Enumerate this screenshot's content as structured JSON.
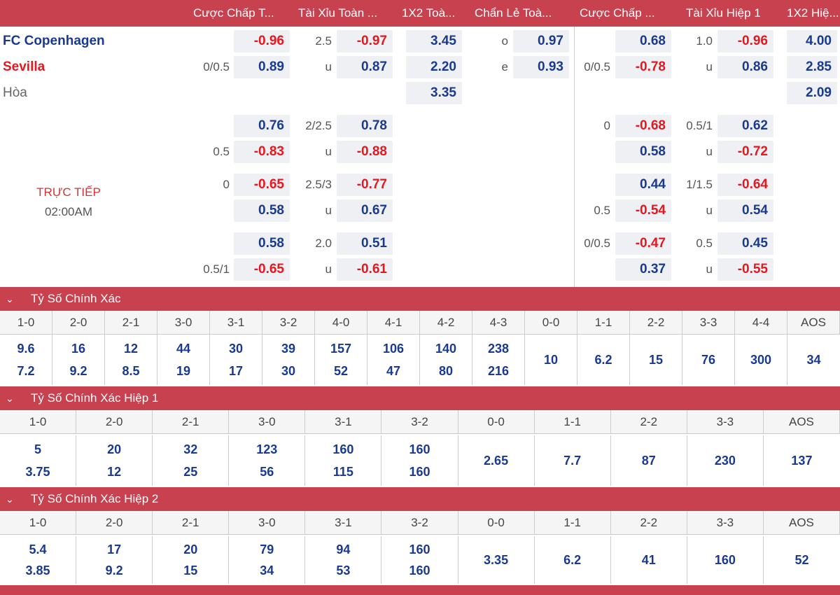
{
  "headers": [
    "Cược Chấp T...",
    "Tài Xỉu Toàn ...",
    "1X2 Toà...",
    "Chẩn Lẻ Toà...",
    "Cược Chấp ...",
    "Tài Xỉu Hiệp 1",
    "1X2 Hiệ..."
  ],
  "teams": {
    "home": "FC Copenhagen",
    "away": "Sevilla",
    "draw": "Hòa"
  },
  "status": {
    "live": "TRỰC TIẾP",
    "time": "02:00AM"
  },
  "rows": {
    "r1": {
      "fh_odd": "-0.96",
      "ou_line": "2.5",
      "ou_odd": "-0.97",
      "x12": "3.45",
      "oe_label": "o",
      "oe_odd": "0.97",
      "h1h_odd": "0.68",
      "h1ou_line": "1.0",
      "h1ou_odd": "-0.96",
      "h1x12": "4.00"
    },
    "r2": {
      "fh_line": "0/0.5",
      "fh_odd": "0.89",
      "ou_label": "u",
      "ou_odd": "0.87",
      "x12": "2.20",
      "oe_label": "e",
      "oe_odd": "0.93",
      "h1h_line": "0/0.5",
      "h1h_odd": "-0.78",
      "h1ou_label": "u",
      "h1ou_odd": "0.86",
      "h1x12": "2.85"
    },
    "r3": {
      "x12": "3.35",
      "h1x12": "2.09"
    },
    "r4": {
      "fh_odd": "0.76",
      "ou_line": "2/2.5",
      "ou_odd": "0.78",
      "h1h_line": "0",
      "h1h_odd": "-0.68",
      "h1ou_line": "0.5/1",
      "h1ou_odd": "0.62"
    },
    "r5": {
      "fh_line": "0.5",
      "fh_odd": "-0.83",
      "ou_label": "u",
      "ou_odd": "-0.88",
      "h1h_odd": "0.58",
      "h1ou_label": "u",
      "h1ou_odd": "-0.72"
    },
    "r6": {
      "fh_line": "0",
      "fh_odd": "-0.65",
      "ou_line": "2.5/3",
      "ou_odd": "-0.77",
      "h1h_odd": "0.44",
      "h1ou_line": "1/1.5",
      "h1ou_odd": "-0.64"
    },
    "r7": {
      "fh_odd": "0.58",
      "ou_label": "u",
      "ou_odd": "0.67",
      "h1h_line": "0.5",
      "h1h_odd": "-0.54",
      "h1ou_label": "u",
      "h1ou_odd": "0.54"
    },
    "r8": {
      "fh_odd": "0.58",
      "ou_line": "2.0",
      "ou_odd": "0.51",
      "h1h_line": "0/0.5",
      "h1h_odd": "-0.47",
      "h1ou_line": "0.5",
      "h1ou_odd": "0.45"
    },
    "r9": {
      "fh_line": "0.5/1",
      "fh_odd": "-0.65",
      "ou_label": "u",
      "ou_odd": "-0.61",
      "h1h_odd": "0.37",
      "h1ou_label": "u",
      "h1ou_odd": "-0.55"
    }
  },
  "correct_score": {
    "title": "Tỷ Số Chính Xác",
    "cols": [
      {
        "score": "1-0",
        "a": "9.6",
        "b": "7.2"
      },
      {
        "score": "2-0",
        "a": "16",
        "b": "9.2"
      },
      {
        "score": "2-1",
        "a": "12",
        "b": "8.5"
      },
      {
        "score": "3-0",
        "a": "44",
        "b": "19"
      },
      {
        "score": "3-1",
        "a": "30",
        "b": "17"
      },
      {
        "score": "3-2",
        "a": "39",
        "b": "30"
      },
      {
        "score": "4-0",
        "a": "157",
        "b": "52"
      },
      {
        "score": "4-1",
        "a": "106",
        "b": "47"
      },
      {
        "score": "4-2",
        "a": "140",
        "b": "80"
      },
      {
        "score": "4-3",
        "a": "238",
        "b": "216"
      },
      {
        "score": "0-0",
        "a": "10"
      },
      {
        "score": "1-1",
        "a": "6.2"
      },
      {
        "score": "2-2",
        "a": "15"
      },
      {
        "score": "3-3",
        "a": "76"
      },
      {
        "score": "4-4",
        "a": "300"
      },
      {
        "score": "AOS",
        "a": "34"
      }
    ]
  },
  "correct_score_h1": {
    "title": "Tỷ Số Chính Xác Hiệp 1",
    "cols": [
      {
        "score": "1-0",
        "a": "5",
        "b": "3.75"
      },
      {
        "score": "2-0",
        "a": "20",
        "b": "12"
      },
      {
        "score": "2-1",
        "a": "32",
        "b": "25"
      },
      {
        "score": "3-0",
        "a": "123",
        "b": "56"
      },
      {
        "score": "3-1",
        "a": "160",
        "b": "115"
      },
      {
        "score": "3-2",
        "a": "160",
        "b": "160"
      },
      {
        "score": "0-0",
        "a": "2.65"
      },
      {
        "score": "1-1",
        "a": "7.7"
      },
      {
        "score": "2-2",
        "a": "87"
      },
      {
        "score": "3-3",
        "a": "230"
      },
      {
        "score": "AOS",
        "a": "137"
      }
    ]
  },
  "correct_score_h2": {
    "title": "Tỷ Số Chính Xác Hiệp 2",
    "cols": [
      {
        "score": "1-0",
        "a": "5.4",
        "b": "3.85"
      },
      {
        "score": "2-0",
        "a": "17",
        "b": "9.2"
      },
      {
        "score": "2-1",
        "a": "20",
        "b": "15"
      },
      {
        "score": "3-0",
        "a": "79",
        "b": "34"
      },
      {
        "score": "3-1",
        "a": "94",
        "b": "53"
      },
      {
        "score": "3-2",
        "a": "160",
        "b": "160"
      },
      {
        "score": "0-0",
        "a": "3.35"
      },
      {
        "score": "1-1",
        "a": "6.2"
      },
      {
        "score": "2-2",
        "a": "41"
      },
      {
        "score": "3-3",
        "a": "160"
      },
      {
        "score": "AOS",
        "a": "52"
      }
    ]
  },
  "icons": {
    "collapse": "chevron-down-icon"
  }
}
